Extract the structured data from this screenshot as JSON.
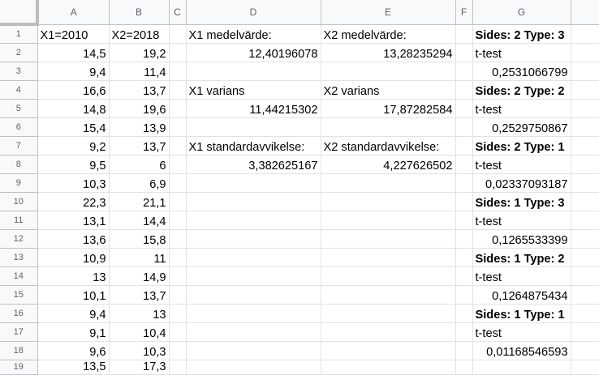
{
  "columns": [
    "A",
    "B",
    "C",
    "D",
    "E",
    "F",
    "G"
  ],
  "row_numbers": [
    "1",
    "2",
    "3",
    "4",
    "5",
    "6",
    "7",
    "8",
    "9",
    "10",
    "11",
    "12",
    "13",
    "14",
    "15",
    "16",
    "17",
    "18",
    "19"
  ],
  "rows": [
    [
      "X1=2010",
      "X2=2018",
      "",
      "X1 medelvärde:",
      "X2 medelvärde:",
      "",
      "Sides: 2 Type: 3"
    ],
    [
      "14,5",
      "19,2",
      "",
      "12,40196078",
      "13,28235294",
      "",
      "t-test"
    ],
    [
      "9,4",
      "11,4",
      "",
      "",
      "",
      "",
      "0,2531066799"
    ],
    [
      "16,6",
      "13,7",
      "",
      "X1 varians",
      "X2 varians",
      "",
      "Sides: 2 Type: 2"
    ],
    [
      "14,8",
      "19,6",
      "",
      "11,44215302",
      "17,87282584",
      "",
      "t-test"
    ],
    [
      "15,4",
      "13,9",
      "",
      "",
      "",
      "",
      "0,2529750867"
    ],
    [
      "9,2",
      "13,7",
      "",
      "X1 standardavvikelse:",
      "X2 standardavvikelse:",
      "",
      "Sides: 2 Type: 1"
    ],
    [
      "9,5",
      "6",
      "",
      "3,382625167",
      "4,227626502",
      "",
      "t-test"
    ],
    [
      "10,3",
      "6,9",
      "",
      "",
      "",
      "",
      "0,02337093187"
    ],
    [
      "22,3",
      "21,1",
      "",
      "",
      "",
      "",
      "Sides: 1 Type: 3"
    ],
    [
      "13,1",
      "14,4",
      "",
      "",
      "",
      "",
      "t-test"
    ],
    [
      "13,6",
      "15,8",
      "",
      "",
      "",
      "",
      "0,1265533399"
    ],
    [
      "10,9",
      "11",
      "",
      "",
      "",
      "",
      "Sides: 1 Type: 2"
    ],
    [
      "13",
      "14,9",
      "",
      "",
      "",
      "",
      "t-test"
    ],
    [
      "10,1",
      "13,7",
      "",
      "",
      "",
      "",
      "0,1264875434"
    ],
    [
      "9,4",
      "13",
      "",
      "",
      "",
      "",
      "Sides: 1 Type: 1"
    ],
    [
      "9,1",
      "10,4",
      "",
      "",
      "",
      "",
      "t-test"
    ],
    [
      "9,6",
      "10,3",
      "",
      "",
      "",
      "",
      "0,01168546593"
    ],
    [
      "13,5",
      "17,3",
      "",
      "",
      "",
      "",
      ""
    ]
  ]
}
